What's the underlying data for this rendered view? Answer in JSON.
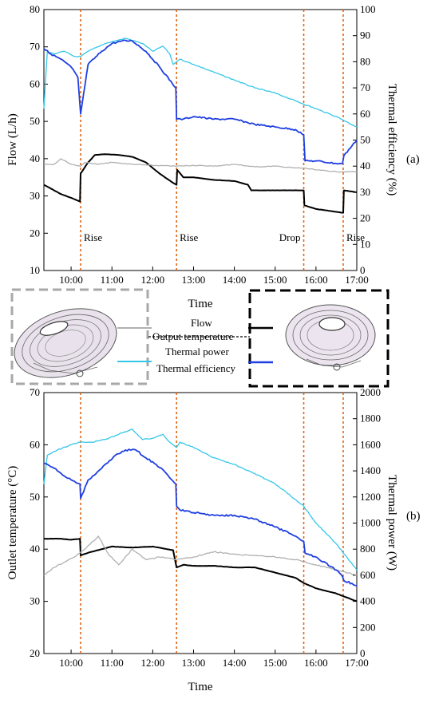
{
  "figure": {
    "panel_a_label": "(a)",
    "panel_b_label": "(b)",
    "legend": {
      "flow": "Flow",
      "output_temperature": "Output temperature",
      "thermal_power": "Thermal power",
      "thermal_efficiency": "Thermal efficiency"
    }
  },
  "colors": {
    "flow": "#000000",
    "output_temperature": "#b0b0b0",
    "thermal_power": "#33c7e8",
    "thermal_efficiency": "#1f3fe0",
    "event_line": "#e0661a",
    "left_box": "#a8a8a8",
    "right_box": "#000000"
  },
  "chart_data": [
    {
      "type": "line",
      "panel": "(a)",
      "xlabel": "Time",
      "ylabel": "Flow (L/h)",
      "y2label": "Thermal efficiency (%)",
      "xlim": [
        "09:20",
        "17:00"
      ],
      "ylim": [
        10,
        80
      ],
      "y2lim": [
        0,
        100
      ],
      "xticks": [
        "10:00",
        "11:00",
        "12:00",
        "13:00",
        "14:00",
        "15:00",
        "16:00",
        "17:00"
      ],
      "yticks": [
        10,
        20,
        30,
        40,
        50,
        60,
        70,
        80
      ],
      "y2ticks": [
        0,
        10,
        20,
        30,
        40,
        50,
        60,
        70,
        80,
        90,
        100
      ],
      "events": [
        {
          "time": "10:14",
          "label": "Rise"
        },
        {
          "time": "12:35",
          "label": "Rise"
        },
        {
          "time": "15:42",
          "label": "Drop"
        },
        {
          "time": "16:40",
          "label": "Rise"
        }
      ],
      "series": [
        {
          "name": "Flow",
          "axis": "left",
          "x": [
            "09:20",
            "09:30",
            "09:45",
            "10:00",
            "10:13",
            "10:14",
            "10:25",
            "10:35",
            "10:50",
            "11:10",
            "11:30",
            "11:50",
            "12:10",
            "12:30",
            "12:35",
            "12:36",
            "12:45",
            "13:00",
            "13:30",
            "14:00",
            "14:20",
            "14:25",
            "15:00",
            "15:40",
            "15:42",
            "15:43",
            "16:00",
            "16:39",
            "16:40",
            "16:41",
            "17:00"
          ],
          "y": [
            33,
            32,
            30.5,
            29.5,
            28.5,
            36,
            39,
            41,
            41.2,
            41,
            40.5,
            39,
            36,
            33.5,
            33,
            37,
            35,
            35,
            34.3,
            34,
            33,
            31.5,
            31.5,
            31.5,
            31.5,
            27.5,
            26.5,
            25.5,
            25.5,
            31.5,
            31
          ]
        },
        {
          "name": "Output temperature",
          "axis": "left",
          "x": [
            "09:20",
            "09:35",
            "09:45",
            "10:00",
            "10:14",
            "10:20",
            "10:40",
            "11:00",
            "11:30",
            "12:00",
            "12:35",
            "13:00",
            "13:30",
            "14:00",
            "14:30",
            "15:00",
            "15:30",
            "15:42",
            "16:00",
            "16:30",
            "17:00"
          ],
          "y": [
            38.5,
            38.5,
            40,
            38.5,
            38,
            39,
            38.5,
            39,
            38.5,
            38.2,
            38,
            38.2,
            38,
            38.5,
            37.8,
            38,
            37.5,
            37.5,
            37,
            36.5,
            36.5
          ]
        },
        {
          "name": "Thermal power",
          "axis": "right",
          "x": [
            "09:20",
            "09:25",
            "09:35",
            "09:50",
            "10:05",
            "10:14",
            "10:25",
            "10:50",
            "11:20",
            "11:45",
            "12:00",
            "12:15",
            "12:25",
            "12:30",
            "12:35",
            "12:40",
            "13:00",
            "13:30",
            "14:00",
            "14:30",
            "15:00",
            "15:30",
            "16:00",
            "16:30",
            "17:00"
          ],
          "y": [
            62,
            84,
            83,
            84,
            82,
            82,
            84,
            87,
            89,
            87,
            84,
            86,
            83,
            79,
            80,
            81,
            79,
            76,
            73,
            70,
            68,
            65,
            62,
            59,
            55
          ]
        },
        {
          "name": "Thermal efficiency",
          "axis": "right",
          "x": [
            "09:20",
            "09:30",
            "09:45",
            "10:00",
            "10:10",
            "10:14",
            "10:25",
            "10:45",
            "11:00",
            "11:15",
            "11:30",
            "11:50",
            "12:10",
            "12:34",
            "12:35",
            "12:45",
            "13:00",
            "13:30",
            "14:00",
            "14:30",
            "15:00",
            "15:30",
            "15:42",
            "15:44",
            "16:00",
            "16:30",
            "16:39",
            "16:41",
            "17:00"
          ],
          "y": [
            85,
            83,
            81,
            78,
            74,
            60,
            79,
            84,
            87,
            88,
            88,
            84,
            78,
            70,
            58,
            58,
            59,
            58,
            58,
            56,
            55,
            54,
            52,
            42,
            42,
            41,
            41,
            44,
            50
          ]
        }
      ]
    },
    {
      "type": "line",
      "panel": "(b)",
      "xlabel": "Time",
      "ylabel": "Outlet temperature (°C)",
      "y2label": "Thermal power (W)",
      "xlim": [
        "09:20",
        "17:00"
      ],
      "ylim": [
        20,
        70
      ],
      "y2lim": [
        0,
        2000
      ],
      "xticks": [
        "10:00",
        "11:00",
        "12:00",
        "13:00",
        "14:00",
        "15:00",
        "16:00",
        "17:00"
      ],
      "yticks": [
        20,
        30,
        40,
        50,
        60,
        70
      ],
      "y2ticks": [
        0,
        200,
        400,
        600,
        800,
        1000,
        1200,
        1400,
        1600,
        1800,
        2000
      ],
      "events": [
        {
          "time": "10:14"
        },
        {
          "time": "12:35"
        },
        {
          "time": "15:42"
        },
        {
          "time": "16:40"
        }
      ],
      "series": [
        {
          "name": "Flow",
          "axis": "left",
          "x": [
            "09:20",
            "09:45",
            "10:00",
            "10:13",
            "10:14",
            "10:30",
            "11:00",
            "11:30",
            "12:00",
            "12:30",
            "12:35",
            "12:45",
            "13:00",
            "13:30",
            "14:00",
            "14:30",
            "15:00",
            "15:30",
            "15:42",
            "16:00",
            "16:30",
            "17:00"
          ],
          "y": [
            42,
            42,
            41.8,
            42,
            38.8,
            39.5,
            40.5,
            40.3,
            40.5,
            39.8,
            36.5,
            37,
            36.8,
            36.8,
            36.5,
            36.5,
            35.5,
            34.5,
            33.5,
            32.5,
            31.5,
            30
          ]
        },
        {
          "name": "Output temperature",
          "axis": "left",
          "x": [
            "09:20",
            "09:35",
            "09:50",
            "10:05",
            "10:20",
            "10:40",
            "10:55",
            "11:10",
            "11:30",
            "11:50",
            "12:10",
            "12:35",
            "13:00",
            "13:30",
            "14:00",
            "14:30",
            "15:00",
            "15:30",
            "16:00",
            "16:30",
            "17:00"
          ],
          "y": [
            35,
            36.5,
            37.5,
            38.5,
            40,
            42.5,
            39,
            37,
            40,
            38,
            38.5,
            38,
            38.5,
            39.5,
            39,
            38.8,
            38.5,
            38,
            37,
            36,
            35
          ]
        },
        {
          "name": "Thermal power",
          "axis": "right",
          "x": [
            "09:20",
            "09:25",
            "09:40",
            "10:00",
            "10:14",
            "10:30",
            "10:50",
            "11:10",
            "11:30",
            "11:45",
            "12:00",
            "12:15",
            "12:25",
            "12:30",
            "12:35",
            "12:40",
            "13:00",
            "13:30",
            "14:00",
            "14:30",
            "15:00",
            "15:30",
            "15:42",
            "16:00",
            "16:30",
            "17:00"
          ],
          "y": [
            1300,
            1520,
            1560,
            1600,
            1620,
            1620,
            1640,
            1680,
            1720,
            1640,
            1650,
            1680,
            1620,
            1600,
            1580,
            1620,
            1580,
            1500,
            1450,
            1380,
            1300,
            1180,
            1130,
            1000,
            840,
            640
          ]
        },
        {
          "name": "Thermal efficiency",
          "axis": "right",
          "x": [
            "09:20",
            "09:35",
            "09:50",
            "10:05",
            "10:13",
            "10:14",
            "10:25",
            "10:45",
            "11:05",
            "11:20",
            "11:35",
            "11:50",
            "12:05",
            "12:20",
            "12:34",
            "12:35",
            "12:40",
            "13:00",
            "13:30",
            "14:00",
            "14:30",
            "15:00",
            "15:30",
            "15:42",
            "15:44",
            "16:00",
            "16:30",
            "16:39",
            "16:41",
            "17:00"
          ],
          "y": [
            1460,
            1420,
            1360,
            1320,
            1300,
            1190,
            1330,
            1420,
            1520,
            1560,
            1560,
            1500,
            1450,
            1380,
            1300,
            1130,
            1100,
            1080,
            1060,
            1060,
            1030,
            970,
            900,
            860,
            770,
            740,
            640,
            590,
            560,
            520
          ]
        }
      ]
    }
  ]
}
